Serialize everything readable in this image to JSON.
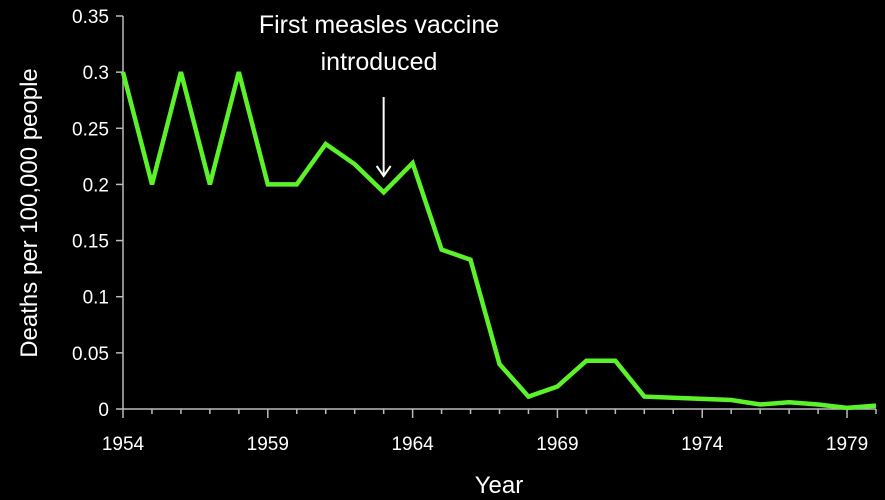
{
  "chart_data": {
    "type": "line",
    "title": "",
    "xlabel": "Year",
    "ylabel": "Deaths per 100,000 people",
    "xlim": [
      1954,
      1980
    ],
    "ylim": [
      0,
      0.35
    ],
    "x_ticks": [
      "1954",
      "1959",
      "1964",
      "1969",
      "1974",
      "1979"
    ],
    "y_ticks": [
      "0",
      "0.05",
      "0.1",
      "0.15",
      "0.2",
      "0.25",
      "0.3",
      "0.35"
    ],
    "grid": false,
    "legend": "none",
    "line_color": "#5cf22a",
    "series": [
      {
        "x": [
          1954,
          1955,
          1956,
          1957,
          1958,
          1959,
          1960,
          1961,
          1962,
          1963,
          1964,
          1965,
          1966,
          1967,
          1968,
          1969,
          1970,
          1971,
          1972,
          1973,
          1974,
          1975,
          1976,
          1977,
          1978,
          1979,
          1980
        ],
        "y": [
          0.3,
          0.2,
          0.3,
          0.2,
          0.3,
          0.2,
          0.2,
          0.236,
          0.218,
          0.193,
          0.219,
          0.142,
          0.133,
          0.04,
          0.011,
          0.02,
          0.043,
          0.043,
          0.011,
          0.01,
          0.009,
          0.008,
          0.004,
          0.006,
          0.004,
          0.001,
          0.003
        ]
      }
    ],
    "annotation": {
      "lines": [
        "First measles vaccine",
        "introduced"
      ],
      "x": 1963,
      "y": 0.193
    }
  }
}
